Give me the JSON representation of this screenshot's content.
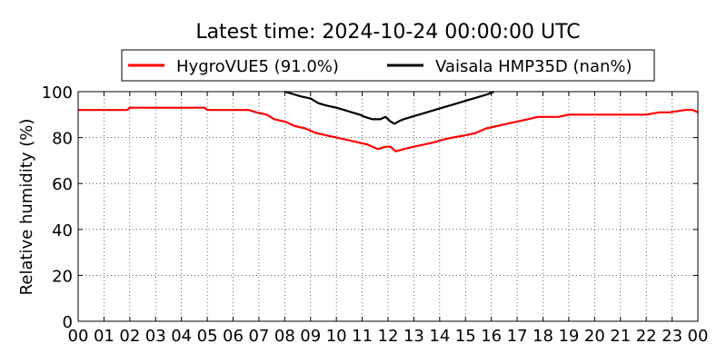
{
  "chart_data": {
    "type": "line",
    "title": "Latest time: 2024-10-24 00:00:00 UTC",
    "xlabel": "",
    "ylabel": "Relative humidity (%)",
    "xlim": [
      0,
      24
    ],
    "ylim": [
      0,
      100
    ],
    "x_ticks": [
      "00",
      "01",
      "02",
      "03",
      "04",
      "05",
      "06",
      "07",
      "08",
      "09",
      "10",
      "11",
      "12",
      "13",
      "14",
      "15",
      "16",
      "17",
      "18",
      "19",
      "20",
      "21",
      "22",
      "23",
      "00"
    ],
    "y_ticks": [
      0,
      20,
      40,
      60,
      80,
      100
    ],
    "grid": true,
    "legend_position": "top",
    "series": [
      {
        "name": "HygroVUE5 (91.0%)",
        "color": "#ff0000",
        "x": [
          0,
          0.1,
          1.9,
          2.0,
          4.9,
          5.0,
          6.6,
          6.9,
          7.3,
          7.6,
          8.0,
          8.4,
          8.8,
          9.2,
          9.6,
          10.0,
          10.4,
          10.8,
          11.2,
          11.6,
          11.9,
          12.1,
          12.3,
          12.6,
          13.0,
          13.4,
          13.8,
          14.1,
          14.5,
          15.0,
          15.4,
          15.8,
          16.2,
          16.6,
          17.0,
          17.4,
          17.8,
          18.2,
          18.6,
          19.0,
          20.0,
          21.0,
          21.5,
          22.0,
          22.5,
          22.9,
          23.5,
          23.8,
          24.0
        ],
        "y": [
          92,
          92,
          92,
          93,
          93,
          92,
          92,
          91,
          90,
          88,
          87,
          85,
          84,
          82,
          81,
          80,
          79,
          78,
          77,
          75,
          76,
          76,
          74,
          75,
          76,
          77,
          78,
          79,
          80,
          81,
          82,
          84,
          85,
          86,
          87,
          88,
          89,
          89,
          89,
          90,
          90,
          90,
          90,
          90,
          91,
          91,
          92,
          92,
          91
        ]
      },
      {
        "name": "Vaisala HMP35D (nan%)",
        "color": "#000000",
        "x": [
          8.0,
          8.3,
          8.6,
          9.0,
          9.3,
          9.6,
          10.0,
          10.3,
          10.6,
          10.9,
          11.1,
          11.4,
          11.7,
          11.9,
          12.1,
          12.25,
          12.4,
          12.6,
          12.9,
          13.2,
          13.5,
          13.8,
          14.1,
          14.4,
          14.7,
          15.0,
          15.3,
          15.6,
          15.9,
          16.1
        ],
        "y": [
          100,
          99,
          98,
          97,
          95,
          94,
          93,
          92,
          91,
          90,
          89,
          88,
          88,
          89,
          87,
          86,
          87,
          88,
          89,
          90,
          91,
          92,
          93,
          94,
          95,
          96,
          97,
          98,
          99,
          100
        ]
      }
    ]
  }
}
